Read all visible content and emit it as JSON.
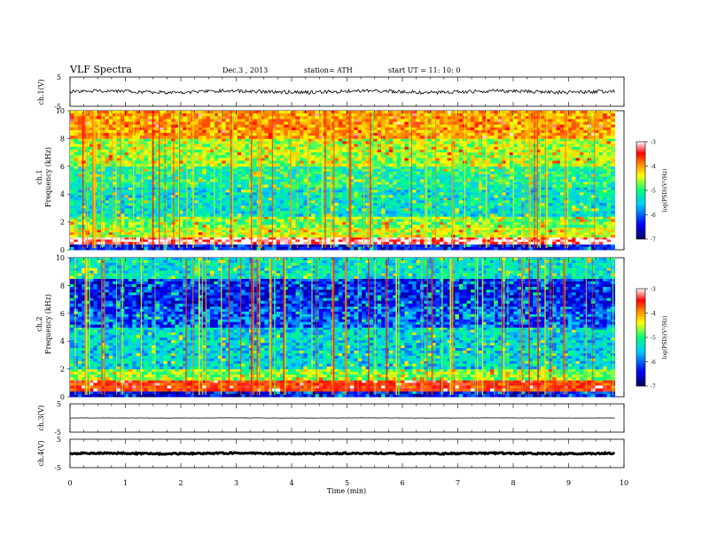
{
  "header": {
    "title": "VLF  Spectra",
    "date": "Dec.3  , 2013",
    "station": "station= ATH",
    "start": "start  UT  =    11: 10: 0"
  },
  "colors": {
    "colormap": [
      "#000060",
      "#0000ff",
      "#00c8ff",
      "#00ff80",
      "#ffff00",
      "#ff8000",
      "#ff0000",
      "#ffffff"
    ]
  },
  "chart_data": [
    {
      "type": "line",
      "panel": "ch1-waveform",
      "ylabel": "ch.1(V)",
      "ylim": [
        -5,
        5
      ],
      "yticks": [
        "5",
        "-5"
      ],
      "description_values": {
        "baseline_v": 0,
        "noise_amplitude_v": 0.6
      }
    },
    {
      "type": "heatmap",
      "panel": "ch1-spectrogram",
      "ylabel_channel": "ch.1",
      "ylabel": "Frequency  (kHz)",
      "ylim": [
        0,
        10
      ],
      "yticks": [
        "0",
        "2",
        "4",
        "6",
        "8",
        "10"
      ],
      "xlim": [
        0,
        10
      ],
      "data_extent_min": 9.83,
      "colorbar": {
        "label": "log(PSD)(V²/Hz)",
        "range": [
          -7,
          -3
        ],
        "ticks": [
          "-3",
          "-4",
          "-5",
          "-6",
          "-7"
        ]
      },
      "bands": [
        {
          "from_khz": 0.0,
          "to_khz": 0.4,
          "log_psd": -6.5
        },
        {
          "from_khz": 0.4,
          "to_khz": 0.9,
          "log_psd": -3.2
        },
        {
          "from_khz": 0.9,
          "to_khz": 1.6,
          "log_psd": -4.8
        },
        {
          "from_khz": 1.6,
          "to_khz": 2.4,
          "log_psd": -5.1
        },
        {
          "from_khz": 2.4,
          "to_khz": 4.5,
          "log_psd": -5.6
        },
        {
          "from_khz": 4.5,
          "to_khz": 6.0,
          "log_psd": -5.4
        },
        {
          "from_khz": 6.0,
          "to_khz": 8.0,
          "log_psd": -4.9
        },
        {
          "from_khz": 8.0,
          "to_khz": 10.0,
          "log_psd": -4.3
        }
      ]
    },
    {
      "type": "heatmap",
      "panel": "ch2-spectrogram",
      "ylabel_channel": "ch.2",
      "ylabel": "Frequency  (kHz)",
      "ylim": [
        0,
        10
      ],
      "yticks": [
        "0",
        "2",
        "4",
        "6",
        "8",
        "10"
      ],
      "xlim": [
        0,
        10
      ],
      "data_extent_min": 9.83,
      "colorbar": {
        "label": "log(PSD)(V²/Hz)",
        "range": [
          -7,
          -3
        ],
        "ticks": [
          "-3",
          "-4",
          "-5",
          "-6",
          "-7"
        ]
      },
      "bands": [
        {
          "from_khz": 0.0,
          "to_khz": 0.4,
          "log_psd": -6.5
        },
        {
          "from_khz": 0.4,
          "to_khz": 1.2,
          "log_psd": -3.8
        },
        {
          "from_khz": 1.2,
          "to_khz": 2.0,
          "log_psd": -5.0
        },
        {
          "from_khz": 2.0,
          "to_khz": 5.0,
          "log_psd": -5.7
        },
        {
          "from_khz": 5.0,
          "to_khz": 6.5,
          "log_psd": -6.2
        },
        {
          "from_khz": 6.5,
          "to_khz": 8.5,
          "log_psd": -6.4
        },
        {
          "from_khz": 8.5,
          "to_khz": 10.0,
          "log_psd": -5.6
        }
      ]
    },
    {
      "type": "line",
      "panel": "ch3-waveform",
      "ylabel": "ch.3(V)",
      "ylim": [
        -5,
        5
      ],
      "yticks": [
        "5",
        "-5"
      ],
      "description_values": {
        "baseline_v": 0,
        "noise_amplitude_v": 0.05
      }
    },
    {
      "type": "line",
      "panel": "ch4-waveform",
      "ylabel": "ch.4(V)",
      "ylim": [
        -5,
        5
      ],
      "yticks": [
        "5",
        "-5"
      ],
      "description_values": {
        "baseline_v": 0,
        "noise_amplitude_v": 0.25
      }
    },
    {
      "type": "axis",
      "panel": "time-axis",
      "xlabel": "Time  (min)",
      "xlim": [
        0,
        10
      ],
      "xticks": [
        "0",
        "1",
        "2",
        "3",
        "4",
        "5",
        "6",
        "7",
        "8",
        "9",
        "10"
      ]
    }
  ]
}
